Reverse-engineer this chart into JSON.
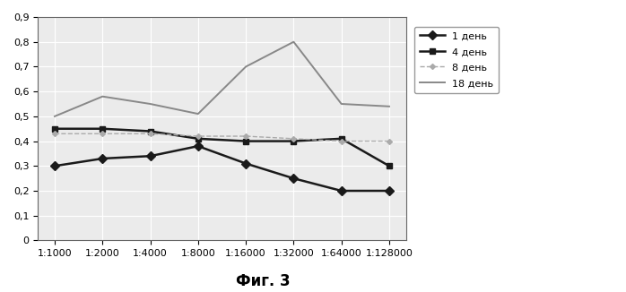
{
  "x_labels": [
    "1:1000",
    "1:2000",
    "1:4000",
    "1:8000",
    "1:16000",
    "1:32000",
    "1:64000",
    "1:128000"
  ],
  "series": [
    {
      "label": "1 день",
      "values": [
        0.3,
        0.33,
        0.34,
        0.38,
        0.31,
        0.25,
        0.2,
        0.2
      ],
      "color": "#1a1a1a",
      "marker": "D",
      "linestyle": "-",
      "linewidth": 1.8,
      "markersize": 5
    },
    {
      "label": "4 день",
      "values": [
        0.45,
        0.45,
        0.44,
        0.41,
        0.4,
        0.4,
        0.41,
        0.3
      ],
      "color": "#1a1a1a",
      "marker": "s",
      "linestyle": "-",
      "linewidth": 1.8,
      "markersize": 5
    },
    {
      "label": "8 день",
      "values": [
        0.43,
        0.43,
        0.43,
        0.42,
        0.42,
        0.41,
        0.4,
        0.4
      ],
      "color": "#aaaaaa",
      "marker": "D",
      "linestyle": "--",
      "linewidth": 1.0,
      "markersize": 3
    },
    {
      "label": "18 день",
      "values": [
        0.5,
        0.58,
        0.55,
        0.51,
        0.7,
        0.8,
        0.55,
        0.54
      ],
      "color": "#888888",
      "marker": "None",
      "linestyle": "-",
      "linewidth": 1.4,
      "markersize": 0
    }
  ],
  "ylim": [
    0,
    0.9
  ],
  "yticks": [
    0,
    0.1,
    0.2,
    0.3,
    0.4,
    0.5,
    0.6,
    0.7,
    0.8,
    0.9
  ],
  "title": "Фиг. 3",
  "title_fontsize": 12,
  "title_bold": true,
  "plot_bg_color": "#ebebeb",
  "fig_bg_color": "#ffffff",
  "grid_color": "#ffffff",
  "legend_fontsize": 8,
  "tick_fontsize": 8
}
